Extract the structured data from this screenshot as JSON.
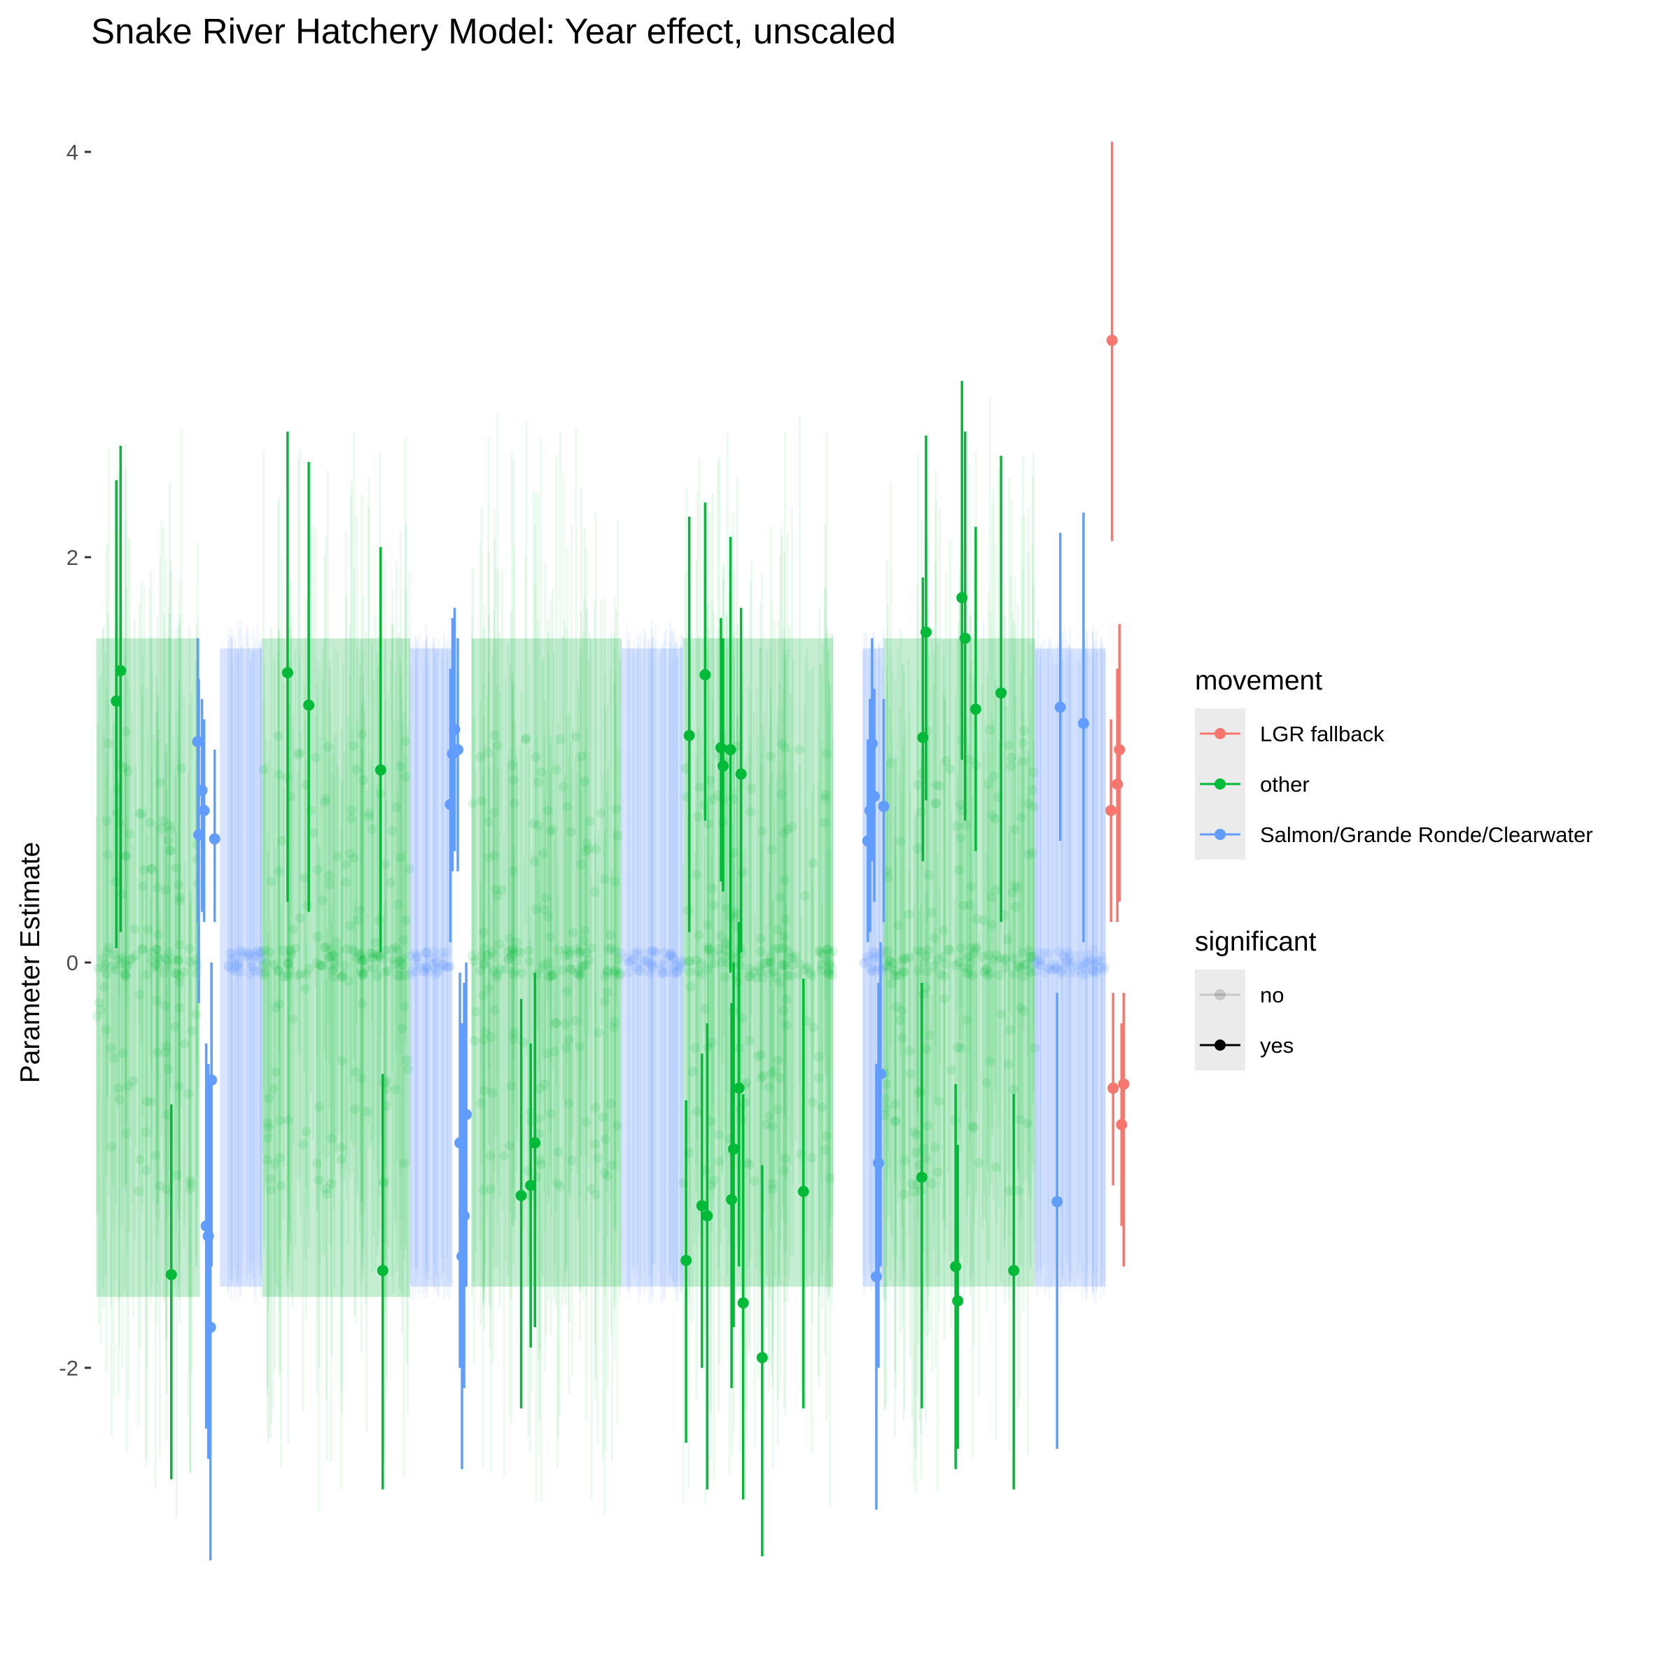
{
  "chart_data": {
    "type": "scatter",
    "title": "Snake River Hatchery Model: Year effect, unscaled",
    "xlabel": "",
    "ylabel": "Parameter Estimate",
    "ylim": [
      -3.3,
      4.2
    ],
    "xlim": [
      0,
      100
    ],
    "y_ticks": [
      -2,
      0,
      2,
      4
    ],
    "y_tick_labels": [
      "-2",
      "0",
      "2",
      "4"
    ],
    "x_axis_shown": false,
    "grid": false,
    "legend_position": "right",
    "colors": {
      "LGR fallback": "#F8766D",
      "other": "#00BA38",
      "Salmon/Grande Ronde/Clearwater": "#619CFF"
    },
    "legends": [
      {
        "title": "movement",
        "entries": [
          {
            "label": "LGR fallback",
            "color": "#F8766D"
          },
          {
            "label": "other",
            "color": "#00BA38"
          },
          {
            "label": "Salmon/Grande Ronde/Clearwater",
            "color": "#619CFF"
          }
        ]
      },
      {
        "title": "significant",
        "entries": [
          {
            "label": "no",
            "alpha": 0.15
          },
          {
            "label": "yes",
            "alpha": 1.0
          }
        ]
      }
    ],
    "background_bands": [
      {
        "movement": "other",
        "x_start": 0.5,
        "x_end": 10.3,
        "lower": -1.65,
        "upper": 1.6
      },
      {
        "movement": "Salmon/Grande Ronde/Clearwater",
        "x_start": 12.2,
        "x_end": 16.2,
        "lower": -1.6,
        "upper": 1.55
      },
      {
        "movement": "other",
        "x_start": 16.2,
        "x_end": 30.2,
        "lower": -1.65,
        "upper": 1.6
      },
      {
        "movement": "Salmon/Grande Ronde/Clearwater",
        "x_start": 30.2,
        "x_end": 34.2,
        "lower": -1.6,
        "upper": 1.55
      },
      {
        "movement": "other",
        "x_start": 36.0,
        "x_end": 50.2,
        "lower": -1.6,
        "upper": 1.6
      },
      {
        "movement": "Salmon/Grande Ronde/Clearwater",
        "x_start": 50.2,
        "x_end": 56.0,
        "lower": -1.6,
        "upper": 1.55
      },
      {
        "movement": "other",
        "x_start": 56.0,
        "x_end": 70.2,
        "lower": -1.6,
        "upper": 1.6
      },
      {
        "movement": "Salmon/Grande Ronde/Clearwater",
        "x_start": 73.0,
        "x_end": 75.0,
        "lower": -1.6,
        "upper": 1.55
      },
      {
        "movement": "other",
        "x_start": 75.0,
        "x_end": 89.3,
        "lower": -1.6,
        "upper": 1.6
      },
      {
        "movement": "Salmon/Grande Ronde/Clearwater",
        "x_start": 89.3,
        "x_end": 96.0,
        "lower": -1.6,
        "upper": 1.55
      }
    ],
    "significant_points": [
      {
        "movement": "other",
        "x": 2.4,
        "y": 1.29,
        "lower": 0.07,
        "upper": 2.38
      },
      {
        "movement": "other",
        "x": 2.8,
        "y": 1.44,
        "lower": 0.15,
        "upper": 2.55
      },
      {
        "movement": "other",
        "x": 7.6,
        "y": -1.54,
        "lower": -2.55,
        "upper": -0.7
      },
      {
        "movement": "Salmon/Grande Ronde/Clearwater",
        "x": 10.1,
        "y": 1.09,
        "lower": 0.2,
        "upper": 1.6
      },
      {
        "movement": "Salmon/Grande Ronde/Clearwater",
        "x": 10.2,
        "y": 0.63,
        "lower": -0.2,
        "upper": 1.4
      },
      {
        "movement": "Salmon/Grande Ronde/Clearwater",
        "x": 10.5,
        "y": 0.85,
        "lower": 0.25,
        "upper": 1.3
      },
      {
        "movement": "Salmon/Grande Ronde/Clearwater",
        "x": 10.7,
        "y": 0.75,
        "lower": 0.2,
        "upper": 1.2
      },
      {
        "movement": "Salmon/Grande Ronde/Clearwater",
        "x": 10.9,
        "y": -1.3,
        "lower": -2.3,
        "upper": -0.4
      },
      {
        "movement": "Salmon/Grande Ronde/Clearwater",
        "x": 11.1,
        "y": -1.35,
        "lower": -2.45,
        "upper": -0.5
      },
      {
        "movement": "Salmon/Grande Ronde/Clearwater",
        "x": 11.3,
        "y": -1.8,
        "lower": -2.95,
        "upper": -0.6
      },
      {
        "movement": "Salmon/Grande Ronde/Clearwater",
        "x": 11.4,
        "y": -0.58,
        "lower": -1.5,
        "upper": 0.0
      },
      {
        "movement": "Salmon/Grande Ronde/Clearwater",
        "x": 11.7,
        "y": 0.61,
        "lower": 0.2,
        "upper": 1.05
      },
      {
        "movement": "other",
        "x": 18.6,
        "y": 1.43,
        "lower": 0.3,
        "upper": 2.62
      },
      {
        "movement": "other",
        "x": 20.6,
        "y": 1.27,
        "lower": 0.25,
        "upper": 2.47
      },
      {
        "movement": "other",
        "x": 27.4,
        "y": 0.95,
        "lower": 0.05,
        "upper": 2.05
      },
      {
        "movement": "other",
        "x": 27.6,
        "y": -1.52,
        "lower": -2.6,
        "upper": -0.55
      },
      {
        "movement": "Salmon/Grande Ronde/Clearwater",
        "x": 34.0,
        "y": 0.78,
        "lower": 0.1,
        "upper": 1.45
      },
      {
        "movement": "Salmon/Grande Ronde/Clearwater",
        "x": 34.2,
        "y": 1.03,
        "lower": 0.45,
        "upper": 1.7
      },
      {
        "movement": "Salmon/Grande Ronde/Clearwater",
        "x": 34.4,
        "y": 1.15,
        "lower": 0.55,
        "upper": 1.75
      },
      {
        "movement": "Salmon/Grande Ronde/Clearwater",
        "x": 34.7,
        "y": 1.05,
        "lower": 0.45,
        "upper": 1.6
      },
      {
        "movement": "Salmon/Grande Ronde/Clearwater",
        "x": 34.9,
        "y": -0.89,
        "lower": -2.0,
        "upper": -0.05
      },
      {
        "movement": "Salmon/Grande Ronde/Clearwater",
        "x": 35.1,
        "y": -1.45,
        "lower": -2.5,
        "upper": -0.3
      },
      {
        "movement": "Salmon/Grande Ronde/Clearwater",
        "x": 35.3,
        "y": -1.25,
        "lower": -2.1,
        "upper": -0.1
      },
      {
        "movement": "Salmon/Grande Ronde/Clearwater",
        "x": 35.5,
        "y": -0.75,
        "lower": -1.6,
        "upper": 0.0
      },
      {
        "movement": "other",
        "x": 40.7,
        "y": -1.15,
        "lower": -2.2,
        "upper": -0.18
      },
      {
        "movement": "other",
        "x": 41.6,
        "y": -1.1,
        "lower": -1.9,
        "upper": -0.4
      },
      {
        "movement": "other",
        "x": 42.0,
        "y": -0.89,
        "lower": -1.8,
        "upper": -0.05
      },
      {
        "movement": "other",
        "x": 56.3,
        "y": -1.47,
        "lower": -2.37,
        "upper": -0.68
      },
      {
        "movement": "other",
        "x": 56.6,
        "y": 1.12,
        "lower": 0.15,
        "upper": 2.2
      },
      {
        "movement": "other",
        "x": 57.8,
        "y": -1.2,
        "lower": -2.0,
        "upper": -0.45
      },
      {
        "movement": "other",
        "x": 58.1,
        "y": 1.42,
        "lower": 0.7,
        "upper": 2.27
      },
      {
        "movement": "other",
        "x": 58.3,
        "y": -1.25,
        "lower": -2.6,
        "upper": -0.3
      },
      {
        "movement": "other",
        "x": 59.6,
        "y": 1.06,
        "lower": 0.4,
        "upper": 1.7
      },
      {
        "movement": "other",
        "x": 59.8,
        "y": 0.97,
        "lower": 0.35,
        "upper": 1.6
      },
      {
        "movement": "other",
        "x": 60.5,
        "y": 1.05,
        "lower": -0.05,
        "upper": 2.1
      },
      {
        "movement": "other",
        "x": 60.6,
        "y": -1.17,
        "lower": -2.1,
        "upper": -0.2
      },
      {
        "movement": "other",
        "x": 60.8,
        "y": -0.92,
        "lower": -1.8,
        "upper": 0.0
      },
      {
        "movement": "other",
        "x": 61.3,
        "y": -0.62,
        "lower": -1.5,
        "upper": 0.2
      },
      {
        "movement": "other",
        "x": 61.5,
        "y": 0.93,
        "lower": 0.05,
        "upper": 1.75
      },
      {
        "movement": "other",
        "x": 61.7,
        "y": -1.68,
        "lower": -2.65,
        "upper": -0.65
      },
      {
        "movement": "other",
        "x": 63.5,
        "y": -1.95,
        "lower": -2.93,
        "upper": -1.0
      },
      {
        "movement": "other",
        "x": 67.4,
        "y": -1.13,
        "lower": -2.2,
        "upper": -0.08
      },
      {
        "movement": "Salmon/Grande Ronde/Clearwater",
        "x": 73.5,
        "y": 0.6,
        "lower": 0.1,
        "upper": 1.1
      },
      {
        "movement": "Salmon/Grande Ronde/Clearwater",
        "x": 73.7,
        "y": 0.75,
        "lower": 0.15,
        "upper": 1.3
      },
      {
        "movement": "Salmon/Grande Ronde/Clearwater",
        "x": 73.9,
        "y": 1.08,
        "lower": 0.5,
        "upper": 1.6
      },
      {
        "movement": "Salmon/Grande Ronde/Clearwater",
        "x": 74.1,
        "y": 0.82,
        "lower": 0.3,
        "upper": 1.35
      },
      {
        "movement": "Salmon/Grande Ronde/Clearwater",
        "x": 74.3,
        "y": -1.55,
        "lower": -2.7,
        "upper": -0.5
      },
      {
        "movement": "Salmon/Grande Ronde/Clearwater",
        "x": 74.5,
        "y": -0.99,
        "lower": -2.0,
        "upper": -0.1
      },
      {
        "movement": "Salmon/Grande Ronde/Clearwater",
        "x": 74.7,
        "y": -0.55,
        "lower": -1.5,
        "upper": 0.1
      },
      {
        "movement": "Salmon/Grande Ronde/Clearwater",
        "x": 75.0,
        "y": 0.77,
        "lower": 0.2,
        "upper": 1.3
      },
      {
        "movement": "other",
        "x": 78.7,
        "y": 1.11,
        "lower": 0.5,
        "upper": 1.9
      },
      {
        "movement": "other",
        "x": 79.0,
        "y": 1.63,
        "lower": 0.8,
        "upper": 2.6
      },
      {
        "movement": "other",
        "x": 78.6,
        "y": -1.06,
        "lower": -2.2,
        "upper": -0.1
      },
      {
        "movement": "other",
        "x": 81.8,
        "y": -1.5,
        "lower": -2.5,
        "upper": -0.6
      },
      {
        "movement": "other",
        "x": 82.0,
        "y": -1.67,
        "lower": -2.4,
        "upper": -0.9
      },
      {
        "movement": "other",
        "x": 82.4,
        "y": 1.8,
        "lower": 1.0,
        "upper": 2.87
      },
      {
        "movement": "other",
        "x": 82.7,
        "y": 1.6,
        "lower": 0.7,
        "upper": 2.62
      },
      {
        "movement": "other",
        "x": 83.7,
        "y": 1.25,
        "lower": 0.55,
        "upper": 2.15
      },
      {
        "movement": "other",
        "x": 86.1,
        "y": 1.33,
        "lower": 0.2,
        "upper": 2.5
      },
      {
        "movement": "other",
        "x": 87.3,
        "y": -1.52,
        "lower": -2.6,
        "upper": -0.65
      },
      {
        "movement": "Salmon/Grande Ronde/Clearwater",
        "x": 91.7,
        "y": 1.26,
        "lower": 0.6,
        "upper": 2.12
      },
      {
        "movement": "Salmon/Grande Ronde/Clearwater",
        "x": 91.4,
        "y": -1.18,
        "lower": -2.4,
        "upper": -0.15
      },
      {
        "movement": "Salmon/Grande Ronde/Clearwater",
        "x": 93.9,
        "y": 1.18,
        "lower": 0.1,
        "upper": 2.22
      },
      {
        "movement": "LGR fallback",
        "x": 96.6,
        "y": 3.07,
        "lower": 2.08,
        "upper": 4.05
      },
      {
        "movement": "LGR fallback",
        "x": 96.7,
        "y": -0.62,
        "lower": -1.1,
        "upper": -0.15
      },
      {
        "movement": "LGR fallback",
        "x": 97.1,
        "y": 0.88,
        "lower": 0.2,
        "upper": 1.45
      },
      {
        "movement": "LGR fallback",
        "x": 97.3,
        "y": 1.05,
        "lower": 0.3,
        "upper": 1.67
      },
      {
        "movement": "LGR fallback",
        "x": 97.5,
        "y": -0.8,
        "lower": -1.3,
        "upper": -0.3
      },
      {
        "movement": "LGR fallback",
        "x": 97.7,
        "y": -0.6,
        "lower": -1.5,
        "upper": -0.15
      },
      {
        "movement": "LGR fallback",
        "x": 96.5,
        "y": 0.75,
        "lower": 0.2,
        "upper": 1.2
      }
    ]
  }
}
